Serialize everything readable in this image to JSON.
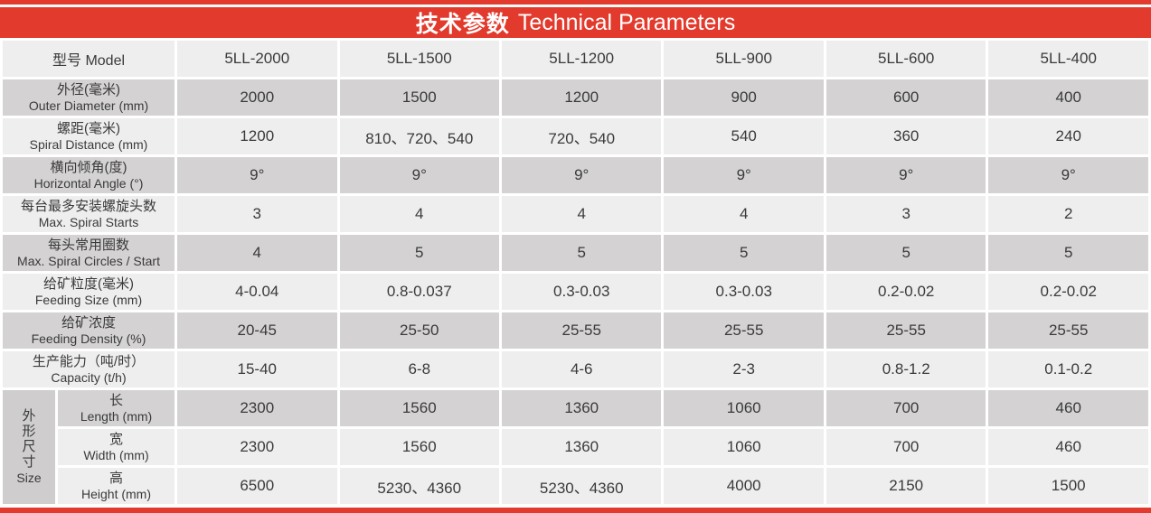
{
  "title": {
    "zh": "技术参数",
    "en": "Technical Parameters"
  },
  "colors": {
    "red": "#e23a2c",
    "row_light": "#efeeee",
    "row_dark": "#d4d2d2",
    "size_cell": "#cfcdcd",
    "text": "#3a3a3a"
  },
  "header_row": {
    "label_zh": "型号",
    "label_en": "Model",
    "shade": "light",
    "models": [
      "5LL-2000",
      "5LL-1500",
      "5LL-1200",
      "5LL-900",
      "5LL-600",
      "5LL-400"
    ]
  },
  "rows": [
    {
      "label_zh": "外径(毫米)",
      "label_en": "Outer Diameter (mm)",
      "shade": "dark",
      "values": [
        "2000",
        "1500",
        "1200",
        "900",
        "600",
        "400"
      ]
    },
    {
      "label_zh": "螺距(毫米)",
      "label_en": "Spiral Distance (mm)",
      "shade": "light",
      "values": [
        "1200",
        "810、720、540",
        "720、540",
        "540",
        "360",
        "240"
      ]
    },
    {
      "label_zh": "横向倾角(度)",
      "label_en": "Horizontal Angle (°)",
      "shade": "dark",
      "values": [
        "9°",
        "9°",
        "9°",
        "9°",
        "9°",
        "9°"
      ]
    },
    {
      "label_zh": "每台最多安装螺旋头数",
      "label_en": "Max. Spiral Starts",
      "shade": "light",
      "values": [
        "3",
        "4",
        "4",
        "4",
        "3",
        "2"
      ]
    },
    {
      "label_zh": "每头常用圈数",
      "label_en": "Max. Spiral Circles / Start",
      "shade": "dark",
      "values": [
        "4",
        "5",
        "5",
        "5",
        "5",
        "5"
      ]
    },
    {
      "label_zh": "给矿粒度(毫米)",
      "label_en": "Feeding Size (mm)",
      "shade": "light",
      "values": [
        "4-0.04",
        "0.8-0.037",
        "0.3-0.03",
        "0.3-0.03",
        "0.2-0.02",
        "0.2-0.02"
      ]
    },
    {
      "label_zh": "给矿浓度",
      "label_en": "Feeding Density (%)",
      "shade": "dark",
      "values": [
        "20-45",
        "25-50",
        "25-55",
        "25-55",
        "25-55",
        "25-55"
      ]
    },
    {
      "label_zh": "生产能力（吨/时）",
      "label_en": "Capacity (t/h)",
      "shade": "light",
      "values": [
        "15-40",
        "6-8",
        "4-6",
        "2-3",
        "0.8-1.2",
        "0.1-0.2"
      ]
    }
  ],
  "size_group": {
    "label_zh": "外形尺寸",
    "label_en": "Size",
    "rows": [
      {
        "label_zh": "长",
        "label_en": "Length (mm)",
        "shade": "dark",
        "values": [
          "2300",
          "1560",
          "1360",
          "1060",
          "700",
          "460"
        ]
      },
      {
        "label_zh": "宽",
        "label_en": "Width (mm)",
        "shade": "light",
        "values": [
          "2300",
          "1560",
          "1360",
          "1060",
          "700",
          "460"
        ]
      },
      {
        "label_zh": "高",
        "label_en": "Height (mm)",
        "shade": "light",
        "values": [
          "6500",
          "5230、4360",
          "5230、4360",
          "4000",
          "2150",
          "1500"
        ]
      }
    ]
  }
}
